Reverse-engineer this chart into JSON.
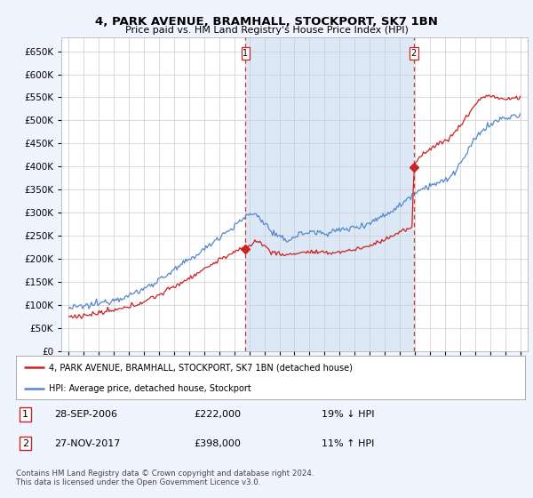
{
  "title": "4, PARK AVENUE, BRAMHALL, STOCKPORT, SK7 1BN",
  "subtitle": "Price paid vs. HM Land Registry's House Price Index (HPI)",
  "background_color": "#f0f4ff",
  "plot_bg_color": "#ffffff",
  "shade_color": "#dce8f5",
  "sale1_date": "28-SEP-2006",
  "sale1_price": 222000,
  "sale1_hpi": "19% ↓ HPI",
  "sale2_date": "27-NOV-2017",
  "sale2_price": 398000,
  "sale2_hpi": "11% ↑ HPI",
  "legend_property": "4, PARK AVENUE, BRAMHALL, STOCKPORT, SK7 1BN (detached house)",
  "legend_hpi": "HPI: Average price, detached house, Stockport",
  "footer": "Contains HM Land Registry data © Crown copyright and database right 2024.\nThis data is licensed under the Open Government Licence v3.0.",
  "sale1_x": 2006.75,
  "sale2_x": 2017.92,
  "hpi_color": "#5588cc",
  "price_color": "#cc2222",
  "vline_color": "#cc3333",
  "ylim_min": 0,
  "ylim_max": 680000,
  "xlim_min": 1994.5,
  "xlim_max": 2025.5
}
